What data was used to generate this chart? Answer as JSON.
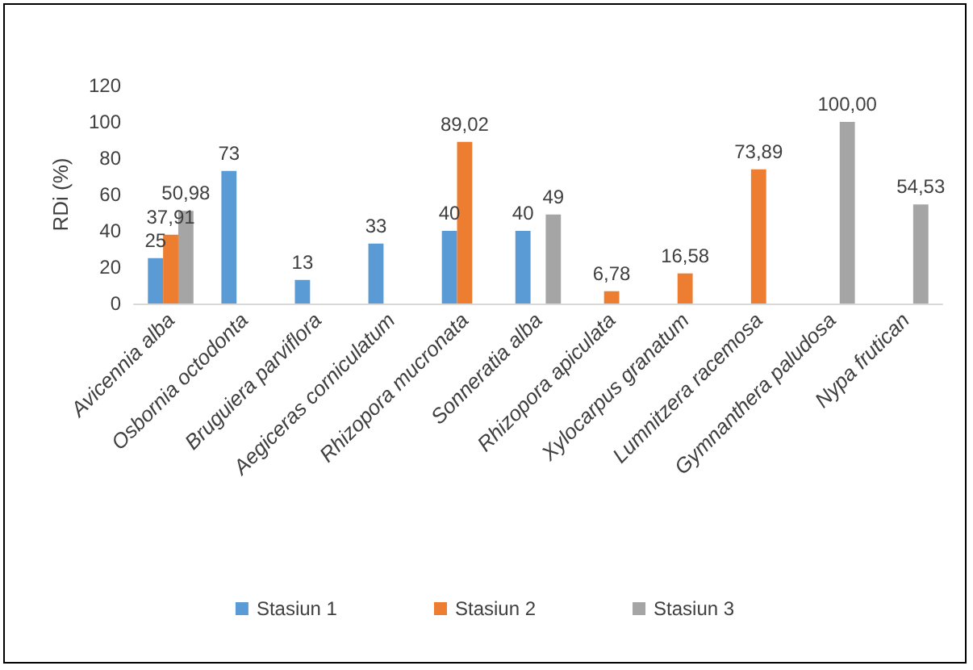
{
  "chart_data": {
    "type": "bar",
    "ylabel": "RDi (%)",
    "categories": [
      "Avicennia alba",
      "Osbornia octodonta",
      "Bruguiera parviflora",
      "Aegiceras corniculatum",
      "Rhizopora mucronata",
      "Sonneratia alba",
      "Rhizopora apiculata",
      "Xylocarpus granatum",
      "Lumnitzera racemosa",
      "Gymnanthera paludosa",
      "Nypa frutican"
    ],
    "series": [
      {
        "name": "Stasiun 1",
        "color": "#5b9bd5",
        "values": [
          25,
          73,
          13,
          33,
          40,
          40,
          null,
          null,
          null,
          null,
          null
        ],
        "value_labels": [
          "25",
          "73",
          "13",
          "33",
          "40",
          "40",
          null,
          null,
          null,
          null,
          null
        ]
      },
      {
        "name": "Stasiun 2",
        "color": "#ed7d31",
        "values": [
          37.91,
          null,
          null,
          null,
          89.02,
          null,
          6.78,
          16.58,
          73.89,
          null,
          null
        ],
        "value_labels": [
          "37,91",
          null,
          null,
          null,
          "89,02",
          null,
          "6,78",
          "16,58",
          "73,89",
          null,
          null
        ]
      },
      {
        "name": "Stasiun 3",
        "color": "#a5a5a5",
        "values": [
          50.98,
          null,
          null,
          null,
          null,
          49,
          null,
          null,
          null,
          100,
          54.53
        ],
        "value_labels": [
          "50,98",
          null,
          null,
          null,
          null,
          "49",
          null,
          null,
          null,
          "100,00",
          "54,53"
        ]
      }
    ],
    "ylim": [
      0,
      120
    ],
    "yticks": [
      0,
      20,
      40,
      60,
      80,
      100,
      120
    ],
    "grid": false,
    "legend": "bottom"
  }
}
